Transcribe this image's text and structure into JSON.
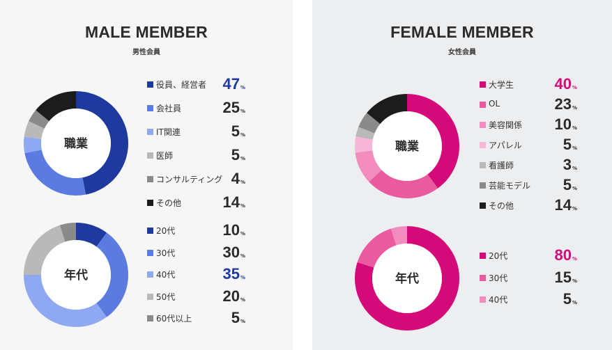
{
  "chart_data": [
    {
      "type": "pie",
      "panel": "male",
      "section_title": "MALE MEMBER",
      "section_subtitle": "男性会員",
      "title": "職業",
      "unit": "%",
      "categories": [
        "役員、経営者",
        "会社員",
        "IT関連",
        "医師",
        "コンサルティング",
        "その他"
      ],
      "values": [
        47,
        25,
        5,
        5,
        4,
        14
      ],
      "colors": [
        "#1f3a9e",
        "#5b7be0",
        "#8ea8f2",
        "#b9b9b9",
        "#8a8a8a",
        "#1c1c1c"
      ],
      "highlight_index": 0,
      "highlight_color": "#1f3a9e"
    },
    {
      "type": "pie",
      "panel": "male",
      "title": "年代",
      "unit": "%",
      "categories": [
        "20代",
        "30代",
        "40代",
        "50代",
        "60代以上"
      ],
      "values": [
        10,
        30,
        35,
        20,
        5
      ],
      "colors": [
        "#1f3a9e",
        "#5b7be0",
        "#8ea8f2",
        "#b9b9b9",
        "#8a8a8a"
      ],
      "highlight_index": 2,
      "highlight_color": "#1f3a9e"
    },
    {
      "type": "pie",
      "panel": "female",
      "section_title": "FEMALE MEMBER",
      "section_subtitle": "女性会員",
      "title": "職業",
      "unit": "%",
      "categories": [
        "大学生",
        "OL",
        "美容関係",
        "アパレル",
        "看護師",
        "芸能モデル",
        "その他"
      ],
      "values": [
        40,
        23,
        10,
        5,
        3,
        5,
        14
      ],
      "colors": [
        "#d4097a",
        "#ea5a9e",
        "#f28cbc",
        "#f7b6d6",
        "#b9b9b9",
        "#8a8a8a",
        "#1c1c1c"
      ],
      "highlight_index": 0,
      "highlight_color": "#d4097a"
    },
    {
      "type": "pie",
      "panel": "female",
      "title": "年代",
      "unit": "%",
      "categories": [
        "20代",
        "30代",
        "40代"
      ],
      "values": [
        80,
        15,
        5
      ],
      "colors": [
        "#d4097a",
        "#ea5a9e",
        "#f28cbc"
      ],
      "highlight_index": 0,
      "highlight_color": "#d4097a"
    }
  ]
}
